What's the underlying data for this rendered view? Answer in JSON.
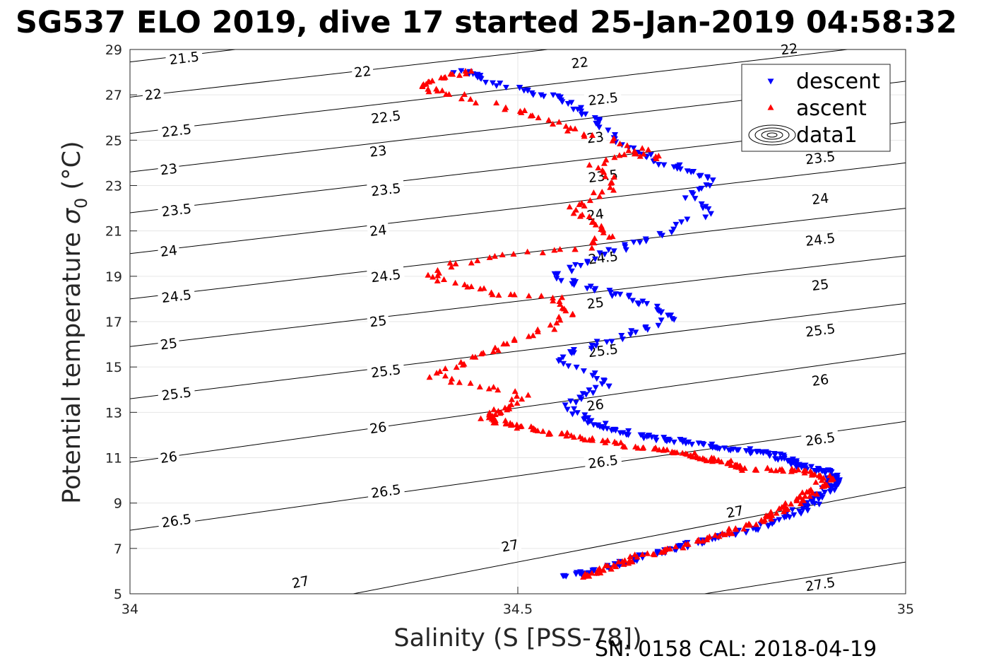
{
  "title": "SG537 ELO 2019, dive 17 started 25-Jan-2019 04:58:32",
  "footer": "SN: 0158  CAL: 2018-04-19",
  "chart_data": {
    "type": "scatter",
    "title": "SG537 ELO 2019, dive 17 started 25-Jan-2019 04:58:32",
    "xlabel": "Salinity (S [PSS-78])",
    "ylabel_main": "Potential temperature ",
    "ylabel_sym": "σ",
    "ylabel_sub": "0",
    "ylabel_unit": " (°C)",
    "xlim": [
      34,
      35
    ],
    "ylim": [
      5,
      29
    ],
    "xticks": [
      "34",
      "34.5",
      "35"
    ],
    "yticks": [
      "5",
      "7",
      "9",
      "11",
      "13",
      "15",
      "17",
      "19",
      "21",
      "23",
      "25",
      "27",
      "29"
    ],
    "grid": true,
    "legend_position": "top-right",
    "legend": [
      {
        "label": "descent",
        "marker": "triangle-down",
        "color": "#0000ff"
      },
      {
        "label": "ascent",
        "marker": "triangle-up",
        "color": "#ff0000"
      },
      {
        "label": "data1",
        "marker": "contour",
        "color": "#000000"
      }
    ],
    "density_contours": [
      {
        "label": "21.5",
        "y0": 28.45,
        "y1": 32.5,
        "label_x": 34.07,
        "label_y": 28.6
      },
      {
        "label": "22",
        "y0": 26.9,
        "y1": 30.8,
        "label_x": 34.03,
        "label_y": 27.0,
        "extra_labels": [
          [
            34.3,
            28.0
          ],
          [
            34.58,
            28.4
          ],
          [
            34.85,
            29.0
          ]
        ]
      },
      {
        "label": "22.5",
        "y0": 25.3,
        "y1": 29.3,
        "label_x": 34.06,
        "label_y": 25.4,
        "extra_labels": [
          [
            34.33,
            26.0
          ],
          [
            34.61,
            26.8
          ],
          [
            34.89,
            27.4
          ]
        ]
      },
      {
        "label": "23",
        "y0": 23.6,
        "y1": 27.6,
        "label_x": 34.05,
        "label_y": 23.7,
        "extra_labels": [
          [
            34.32,
            24.5
          ],
          [
            34.6,
            25.1
          ],
          [
            34.89,
            25.8
          ]
        ]
      },
      {
        "label": "23.5",
        "y0": 21.8,
        "y1": 25.8,
        "label_x": 34.06,
        "label_y": 21.9,
        "extra_labels": [
          [
            34.33,
            22.8
          ],
          [
            34.61,
            23.4
          ],
          [
            34.89,
            24.2
          ]
        ]
      },
      {
        "label": "24",
        "y0": 20.0,
        "y1": 24.0,
        "label_x": 34.05,
        "label_y": 20.1,
        "extra_labels": [
          [
            34.32,
            21.0
          ],
          [
            34.6,
            21.7
          ],
          [
            34.89,
            22.4
          ]
        ]
      },
      {
        "label": "24.5",
        "y0": 18.0,
        "y1": 22.0,
        "label_x": 34.06,
        "label_y": 18.1,
        "extra_labels": [
          [
            34.33,
            19.0
          ],
          [
            34.61,
            19.8
          ],
          [
            34.89,
            20.6
          ]
        ]
      },
      {
        "label": "25",
        "y0": 15.9,
        "y1": 19.9,
        "label_x": 34.05,
        "label_y": 16.0,
        "extra_labels": [
          [
            34.32,
            17.0
          ],
          [
            34.6,
            17.8
          ],
          [
            34.89,
            18.6
          ]
        ]
      },
      {
        "label": "25.5",
        "y0": 13.6,
        "y1": 17.8,
        "label_x": 34.06,
        "label_y": 13.8,
        "extra_labels": [
          [
            34.33,
            14.8
          ],
          [
            34.61,
            15.7
          ],
          [
            34.89,
            16.6
          ]
        ]
      },
      {
        "label": "26",
        "y0": 10.8,
        "y1": 15.6,
        "label_x": 34.05,
        "label_y": 11.0,
        "extra_labels": [
          [
            34.32,
            12.3
          ],
          [
            34.6,
            13.3
          ],
          [
            34.89,
            14.4
          ]
        ]
      },
      {
        "label": "26.5",
        "y0": 7.8,
        "y1": 12.6,
        "label_x": 34.06,
        "label_y": 8.2,
        "extra_labels": [
          [
            34.33,
            9.5
          ],
          [
            34.61,
            10.8
          ],
          [
            34.89,
            11.8
          ]
        ]
      },
      {
        "label": "27",
        "y0": 3.1,
        "y1": 9.7,
        "label_x": 34.22,
        "label_y": 5.5,
        "extra_labels": [
          [
            34.49,
            7.1
          ],
          [
            34.78,
            8.6
          ]
        ]
      },
      {
        "label": "27.5",
        "y0": 1.0,
        "y1": 6.4,
        "label_x": 34.89,
        "label_y": 5.4
      }
    ],
    "series": [
      {
        "name": "descent",
        "marker": "triangle-down",
        "color": "#0000ff",
        "path": [
          [
            34.42,
            28.0
          ],
          [
            34.45,
            27.95
          ],
          [
            34.46,
            27.6
          ],
          [
            34.5,
            27.3
          ],
          [
            34.53,
            27.0
          ],
          [
            34.56,
            26.8
          ],
          [
            34.58,
            26.3
          ],
          [
            34.6,
            25.9
          ],
          [
            34.62,
            25.3
          ],
          [
            34.65,
            24.6
          ],
          [
            34.67,
            24.2
          ],
          [
            34.7,
            23.9
          ],
          [
            34.72,
            23.6
          ],
          [
            34.75,
            23.2
          ],
          [
            34.72,
            22.6
          ],
          [
            34.75,
            21.9
          ],
          [
            34.7,
            21.1
          ],
          [
            34.66,
            20.5
          ],
          [
            34.62,
            20.1
          ],
          [
            34.58,
            19.5
          ],
          [
            34.55,
            19.0
          ],
          [
            34.58,
            18.6
          ],
          [
            34.62,
            18.3
          ],
          [
            34.65,
            18.0
          ],
          [
            34.68,
            17.6
          ],
          [
            34.7,
            17.2
          ],
          [
            34.66,
            16.6
          ],
          [
            34.62,
            16.2
          ],
          [
            34.58,
            15.8
          ],
          [
            34.56,
            15.3
          ],
          [
            34.6,
            14.6
          ],
          [
            34.62,
            14.2
          ],
          [
            34.58,
            13.8
          ],
          [
            34.56,
            13.2
          ],
          [
            34.59,
            12.7
          ],
          [
            34.62,
            12.2
          ],
          [
            34.67,
            11.9
          ],
          [
            34.72,
            11.65
          ],
          [
            34.78,
            11.4
          ],
          [
            34.82,
            11.2
          ],
          [
            34.85,
            10.9
          ],
          [
            34.87,
            10.6
          ],
          [
            34.9,
            10.4
          ],
          [
            34.91,
            10.0
          ],
          [
            34.9,
            9.6
          ],
          [
            34.88,
            9.0
          ],
          [
            34.85,
            8.4
          ],
          [
            34.8,
            7.8
          ],
          [
            34.75,
            7.4
          ],
          [
            34.7,
            7.0
          ],
          [
            34.65,
            6.5
          ],
          [
            34.6,
            6.0
          ],
          [
            34.56,
            5.8
          ]
        ]
      },
      {
        "name": "ascent",
        "marker": "triangle-up",
        "color": "#ff0000",
        "path": [
          [
            34.58,
            5.75
          ],
          [
            34.62,
            6.2
          ],
          [
            34.66,
            6.7
          ],
          [
            34.72,
            7.2
          ],
          [
            34.77,
            7.7
          ],
          [
            34.82,
            8.3
          ],
          [
            34.85,
            8.9
          ],
          [
            34.88,
            9.5
          ],
          [
            34.9,
            10.1
          ],
          [
            34.87,
            10.4
          ],
          [
            34.8,
            10.5
          ],
          [
            34.77,
            10.8
          ],
          [
            34.74,
            11.0
          ],
          [
            34.7,
            11.3
          ],
          [
            34.63,
            11.6
          ],
          [
            34.56,
            12.0
          ],
          [
            34.5,
            12.4
          ],
          [
            34.46,
            12.7
          ],
          [
            34.48,
            13.2
          ],
          [
            34.51,
            13.7
          ],
          [
            34.45,
            14.2
          ],
          [
            34.39,
            14.6
          ],
          [
            34.43,
            15.2
          ],
          [
            34.46,
            15.7
          ],
          [
            34.5,
            16.2
          ],
          [
            34.55,
            16.8
          ],
          [
            34.57,
            17.5
          ],
          [
            34.55,
            18.0
          ],
          [
            34.48,
            18.2
          ],
          [
            34.43,
            18.6
          ],
          [
            34.39,
            19.0
          ],
          [
            34.42,
            19.6
          ],
          [
            34.5,
            20.0
          ],
          [
            34.58,
            20.2
          ],
          [
            34.62,
            20.8
          ],
          [
            34.6,
            21.4
          ],
          [
            34.57,
            21.9
          ],
          [
            34.6,
            22.5
          ],
          [
            34.63,
            23.2
          ],
          [
            34.6,
            23.9
          ],
          [
            34.64,
            24.5
          ],
          [
            34.68,
            24.2
          ],
          [
            34.64,
            24.9
          ],
          [
            34.57,
            25.4
          ],
          [
            34.54,
            25.9
          ],
          [
            34.5,
            26.3
          ],
          [
            34.43,
            26.9
          ],
          [
            34.39,
            27.2
          ],
          [
            34.37,
            27.5
          ],
          [
            34.41,
            27.8
          ],
          [
            34.44,
            28.05
          ]
        ]
      }
    ]
  }
}
